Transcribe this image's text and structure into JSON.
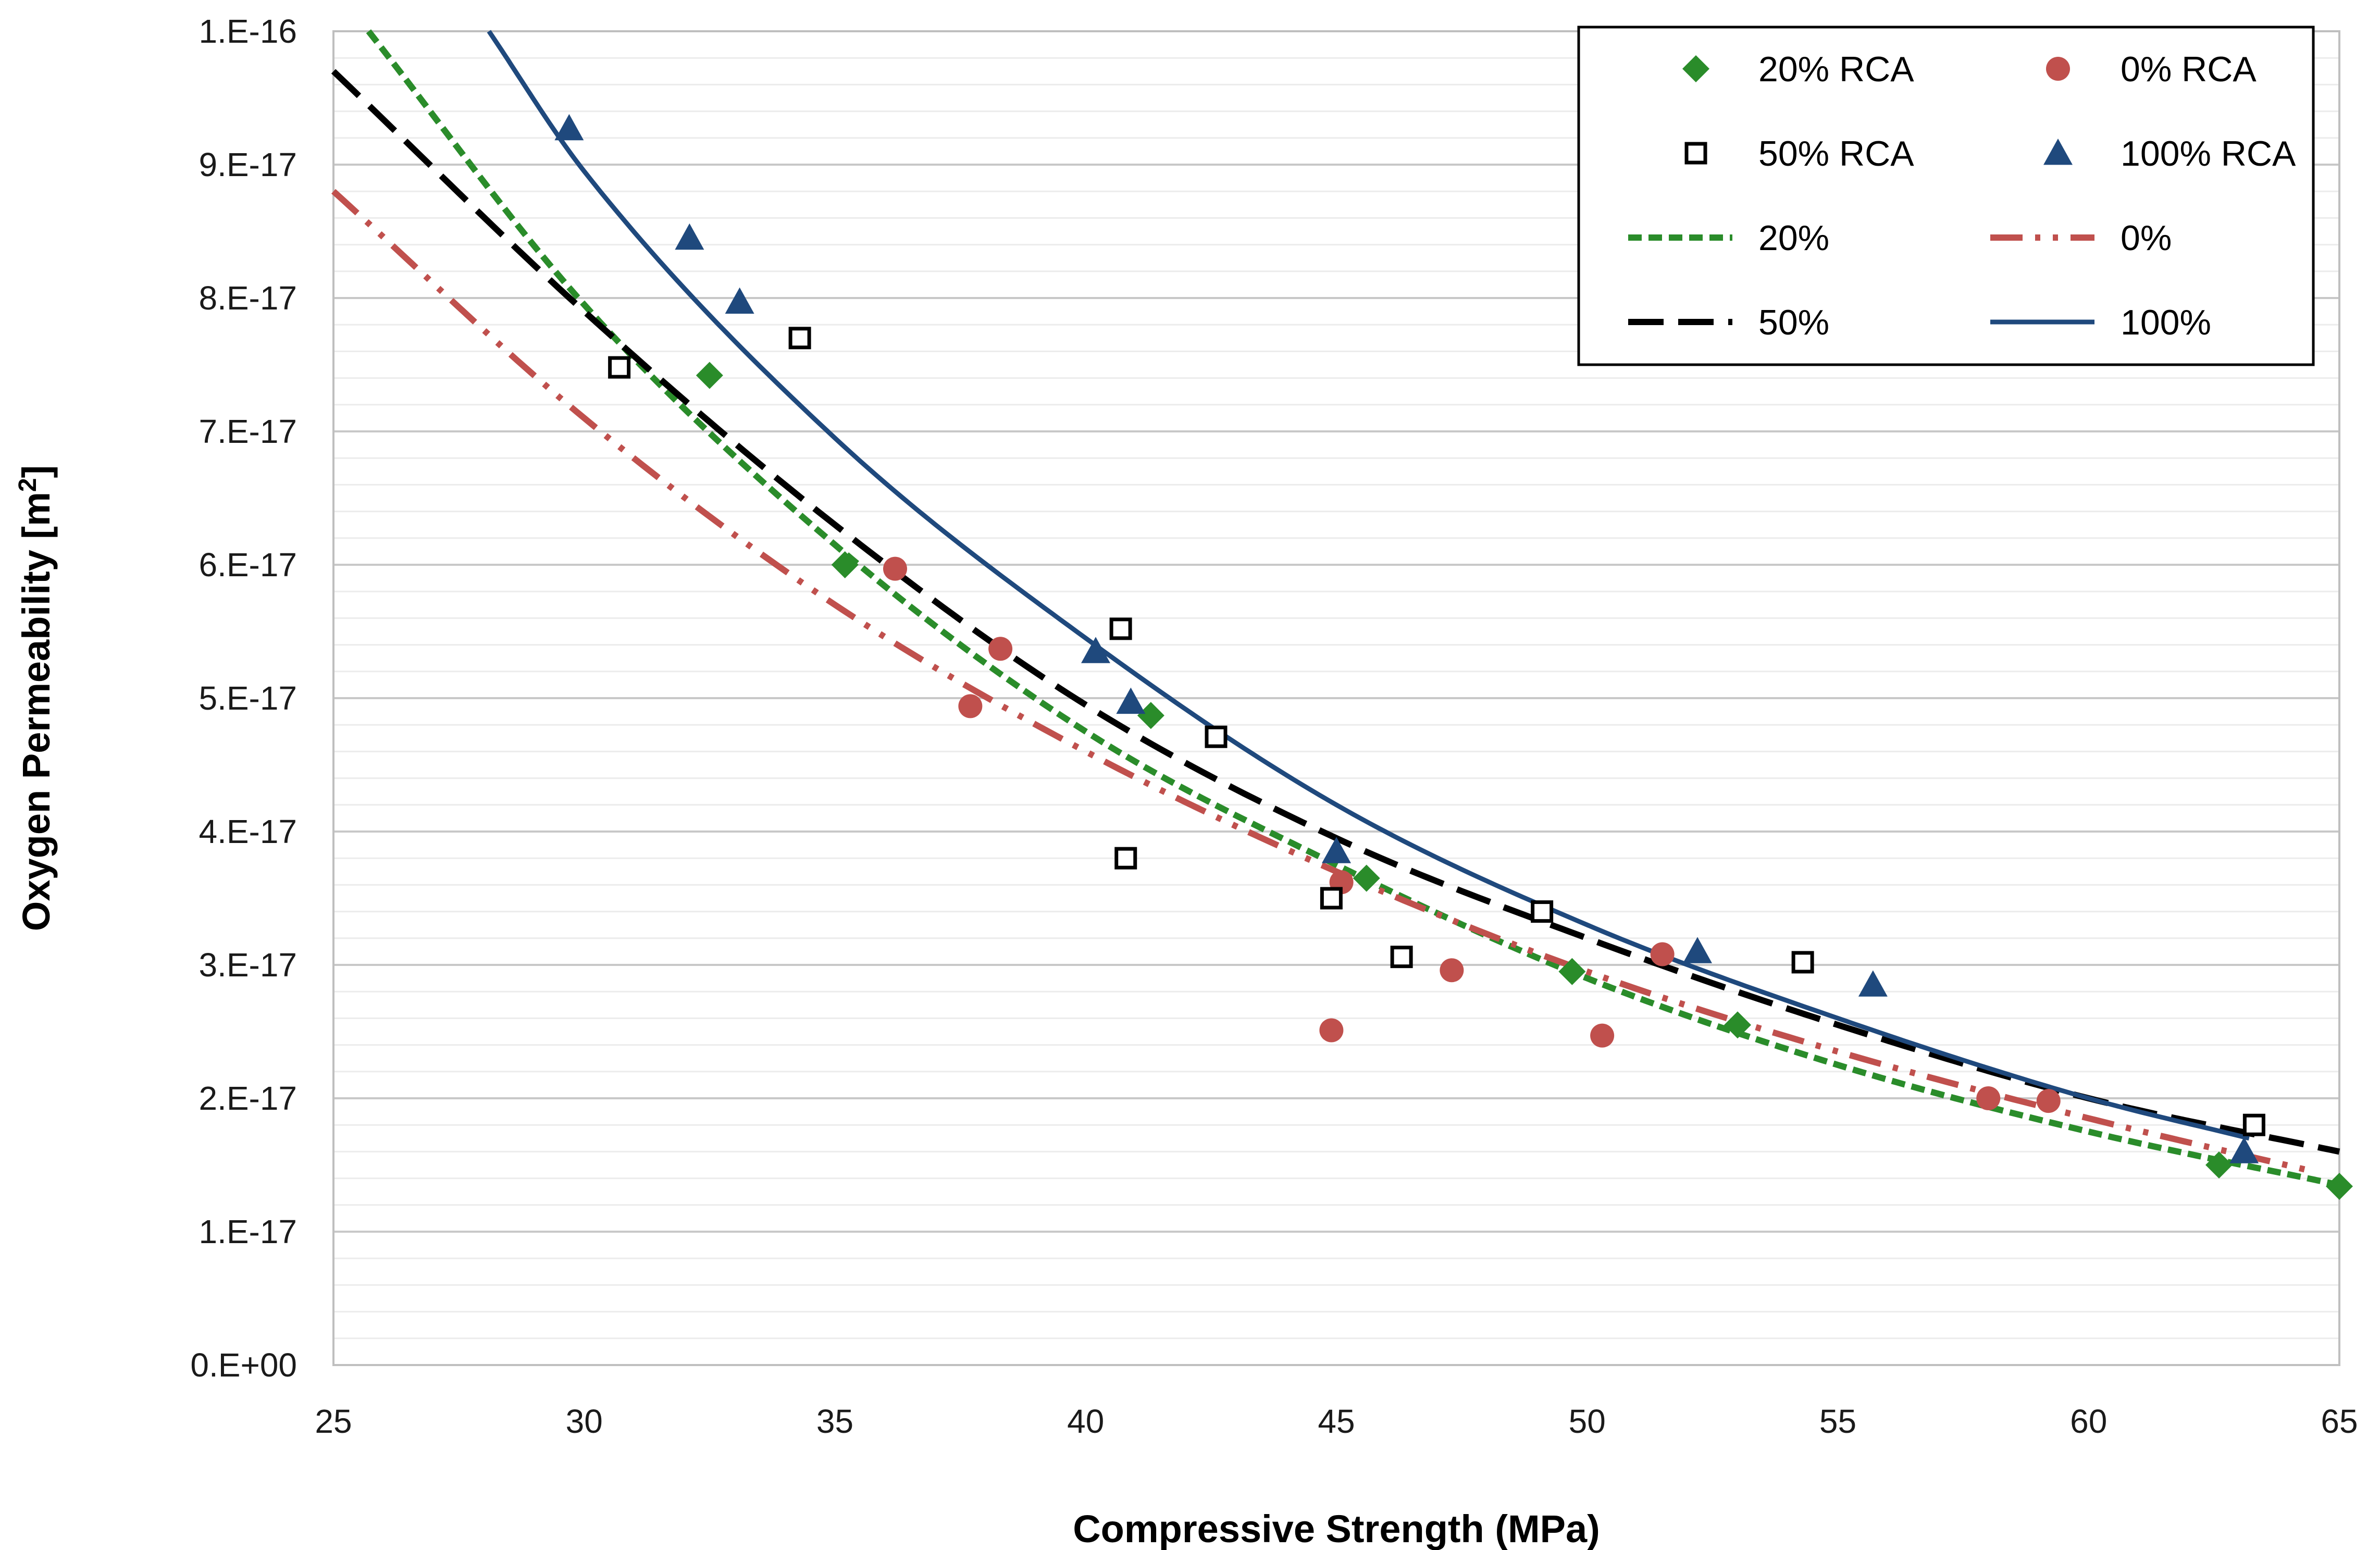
{
  "chart_data": {
    "type": "scatter",
    "title": "",
    "xlabel": "Compressive Strength (MPa)",
    "ylabel_text": "Oxygen Permeability [m",
    "ylabel_sup": "2",
    "ylabel_close": "]",
    "xlim": [
      25,
      65
    ],
    "ylim": [
      0,
      1e-16
    ],
    "x_ticks": [
      {
        "value": 25,
        "label": "25"
      },
      {
        "value": 30,
        "label": "30"
      },
      {
        "value": 35,
        "label": "35"
      },
      {
        "value": 40,
        "label": "40"
      },
      {
        "value": 45,
        "label": "45"
      },
      {
        "value": 50,
        "label": "50"
      },
      {
        "value": 55,
        "label": "55"
      },
      {
        "value": 60,
        "label": "60"
      },
      {
        "value": 65,
        "label": "65"
      }
    ],
    "y_ticks": [
      {
        "value": 0,
        "label": "0.E+00"
      },
      {
        "value": 1e-17,
        "label": "1.E-17"
      },
      {
        "value": 2e-17,
        "label": "2.E-17"
      },
      {
        "value": 3e-17,
        "label": "3.E-17"
      },
      {
        "value": 4e-17,
        "label": "4.E-17"
      },
      {
        "value": 5e-17,
        "label": "5.E-17"
      },
      {
        "value": 6e-17,
        "label": "6.E-17"
      },
      {
        "value": 7e-17,
        "label": "7.E-17"
      },
      {
        "value": 8e-17,
        "label": "8.E-17"
      },
      {
        "value": 9e-17,
        "label": "9.E-17"
      },
      {
        "value": 1e-16,
        "label": "1.E-16"
      }
    ],
    "minor_grid_step": 2e-18,
    "legend_position": "top-right",
    "series": [
      {
        "name": "20% RCA",
        "kind": "scatter",
        "marker": "diamond",
        "color": "#2a8c2a",
        "points": [
          [
            32.5,
            7.42e-17
          ],
          [
            35.2,
            6e-17
          ],
          [
            41.3,
            4.87e-17
          ],
          [
            45.6,
            3.65e-17
          ],
          [
            49.7,
            2.95e-17
          ],
          [
            53.0,
            2.55e-17
          ],
          [
            62.6,
            1.5e-17
          ],
          [
            65.0,
            1.34e-17
          ]
        ]
      },
      {
        "name": "0% RCA",
        "kind": "scatter",
        "marker": "circle",
        "color": "#c0504d",
        "points": [
          [
            36.2,
            5.97e-17
          ],
          [
            37.7,
            4.94e-17
          ],
          [
            38.3,
            5.37e-17
          ],
          [
            44.9,
            2.51e-17
          ],
          [
            45.1,
            3.62e-17
          ],
          [
            47.3,
            2.96e-17
          ],
          [
            50.3,
            2.47e-17
          ],
          [
            51.5,
            3.08e-17
          ],
          [
            58.0,
            2e-17
          ],
          [
            59.2,
            1.98e-17
          ]
        ]
      },
      {
        "name": "50% RCA",
        "kind": "scatter",
        "marker": "square",
        "color": "#000000",
        "points": [
          [
            30.7,
            7.48e-17
          ],
          [
            34.3,
            7.7e-17
          ],
          [
            40.7,
            5.52e-17
          ],
          [
            40.8,
            3.8e-17
          ],
          [
            42.6,
            4.71e-17
          ],
          [
            44.9,
            3.5e-17
          ],
          [
            46.3,
            3.06e-17
          ],
          [
            49.1,
            3.4e-17
          ],
          [
            54.3,
            3.02e-17
          ],
          [
            63.3,
            1.8e-17
          ]
        ]
      },
      {
        "name": "100% RCA",
        "kind": "scatter",
        "marker": "triangle",
        "color": "#1f497d",
        "points": [
          [
            29.7,
            9.27e-17
          ],
          [
            32.1,
            8.45e-17
          ],
          [
            33.1,
            7.97e-17
          ],
          [
            40.2,
            5.35e-17
          ],
          [
            40.9,
            4.97e-17
          ],
          [
            45.0,
            3.85e-17
          ],
          [
            52.2,
            3.1e-17
          ],
          [
            55.7,
            2.85e-17
          ],
          [
            63.1,
            1.6e-17
          ]
        ]
      },
      {
        "name": "20%",
        "kind": "trendline",
        "style": "short-dash",
        "color": "#2a8c2a",
        "x_range": [
          25.7,
          65
        ],
        "points": [
          [
            25.7,
            1e-16
          ],
          [
            30,
            7.95e-17
          ],
          [
            35,
            6.15e-17
          ],
          [
            40,
            4.75e-17
          ],
          [
            45,
            3.75e-17
          ],
          [
            50,
            2.9e-17
          ],
          [
            55,
            2.25e-17
          ],
          [
            60,
            1.75e-17
          ],
          [
            65,
            1.35e-17
          ]
        ]
      },
      {
        "name": "0%",
        "kind": "trendline",
        "style": "dash-dot-dot",
        "color": "#c0504d",
        "x_range": [
          25,
          64.5
        ],
        "points": [
          [
            25,
            8.8e-17
          ],
          [
            30,
            7.1e-17
          ],
          [
            35,
            5.7e-17
          ],
          [
            40,
            4.6e-17
          ],
          [
            45,
            3.7e-17
          ],
          [
            50,
            2.95e-17
          ],
          [
            55,
            2.35e-17
          ],
          [
            60,
            1.85e-17
          ],
          [
            64.5,
            1.45e-17
          ]
        ]
      },
      {
        "name": "50%",
        "kind": "trendline",
        "style": "long-dash",
        "color": "#000000",
        "x_range": [
          25,
          65
        ],
        "points": [
          [
            25,
            9.7e-17
          ],
          [
            30,
            7.9e-17
          ],
          [
            35,
            6.3e-17
          ],
          [
            40,
            4.95e-17
          ],
          [
            45,
            3.95e-17
          ],
          [
            50,
            3.2e-17
          ],
          [
            55,
            2.55e-17
          ],
          [
            60,
            2e-17
          ],
          [
            65,
            1.6e-17
          ]
        ]
      },
      {
        "name": "100%",
        "kind": "trendline",
        "style": "solid",
        "color": "#1f497d",
        "x_range": [
          28.1,
          63.2
        ],
        "points": [
          [
            28.1,
            1e-16
          ],
          [
            30,
            8.95e-17
          ],
          [
            35,
            6.95e-17
          ],
          [
            40,
            5.45e-17
          ],
          [
            45,
            4.2e-17
          ],
          [
            50,
            3.3e-17
          ],
          [
            55,
            2.6e-17
          ],
          [
            60,
            2e-17
          ],
          [
            63.2,
            1.7e-17
          ]
        ]
      }
    ],
    "legend": [
      {
        "label": "20% RCA",
        "series": "20% RCA"
      },
      {
        "label": "0% RCA",
        "series": "0% RCA"
      },
      {
        "label": "50% RCA",
        "series": "50% RCA"
      },
      {
        "label": "100% RCA",
        "series": "100% RCA"
      },
      {
        "label": "20%",
        "series": "20%"
      },
      {
        "label": "0%",
        "series": "0%"
      },
      {
        "label": "50%",
        "series": "50%"
      },
      {
        "label": "100%",
        "series": "100%"
      }
    ]
  }
}
